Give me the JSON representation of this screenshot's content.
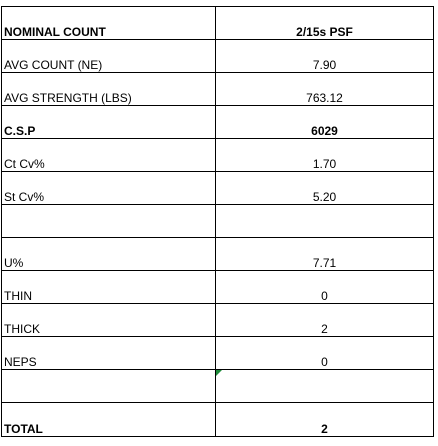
{
  "table": {
    "header": {
      "label": "NOMINAL COUNT",
      "value": "2/15s PSF"
    },
    "rows": [
      {
        "label": "AVG COUNT (NE)",
        "value": "7.90"
      },
      {
        "label": "AVG STRENGTH (LBS)",
        "value": "763.12"
      },
      {
        "label": "C.S.P",
        "value": "6029"
      },
      {
        "label": "Ct Cv%",
        "value": "1.70"
      },
      {
        "label": "St Cv%",
        "value": "5.20"
      },
      {
        "label": "",
        "value": ""
      },
      {
        "label": "U%",
        "value": "7.71"
      },
      {
        "label": "THIN",
        "value": "0"
      },
      {
        "label": "THICK",
        "value": "2"
      },
      {
        "label": "NEPS",
        "value": "0"
      },
      {
        "label": "",
        "value": ""
      }
    ],
    "total": {
      "label": "TOTAL",
      "value": "2"
    }
  },
  "colors": {
    "grid": "#000000",
    "cell_note_marker": "#1e8c3a"
  }
}
